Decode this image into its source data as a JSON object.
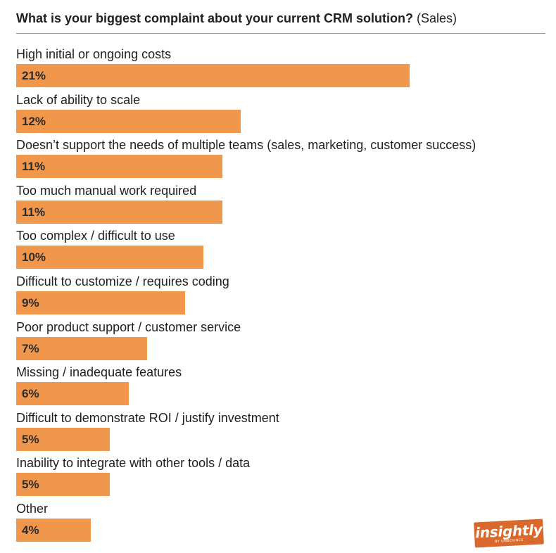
{
  "title": {
    "main": "What is your biggest complaint about your current CRM solution?",
    "suffix": "(Sales)"
  },
  "logo": {
    "wordmark": "insightly",
    "byline": "BY UNBOUNCE",
    "color": "#d9682d"
  },
  "colors": {
    "bar": "#f0974b",
    "text": "#1f1f1f",
    "divider": "#9a9a9a"
  },
  "chart_data": {
    "type": "bar",
    "orientation": "horizontal",
    "title": "What is your biggest complaint about your current CRM solution? (Sales)",
    "categories": [
      "High initial or ongoing costs",
      "Lack of ability to scale",
      "Doesn’t support the needs of multiple teams (sales, marketing, customer success)",
      "Too much manual work required",
      "Too complex / difficult to use",
      "Difficult to customize / requires coding",
      "Poor product support / customer service",
      "Missing / inadequate features",
      "Difficult to demonstrate ROI / justify investment",
      "Inability to integrate with other tools / data",
      "Other"
    ],
    "values": [
      21,
      12,
      11,
      11,
      10,
      9,
      7,
      6,
      5,
      5,
      4
    ],
    "value_labels": [
      "21%",
      "12%",
      "11%",
      "11%",
      "10%",
      "9%",
      "7%",
      "6%",
      "5%",
      "5%",
      "4%"
    ],
    "unit": "%",
    "grid": false,
    "legend": "none"
  }
}
